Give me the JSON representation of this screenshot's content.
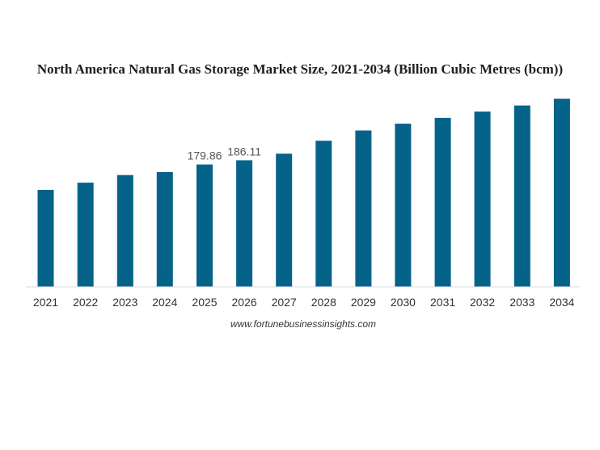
{
  "chart_data": {
    "type": "bar",
    "title": "North America Natural Gas Storage Market Size, 2021-2034 (Billion Cubic Metres (bcm))",
    "categories": [
      "2021",
      "2022",
      "2023",
      "2024",
      "2025",
      "2026",
      "2027",
      "2028",
      "2029",
      "2030",
      "2031",
      "2032",
      "2033",
      "2034"
    ],
    "values": [
      142.6,
      153.2,
      164.3,
      168.7,
      179.86,
      186.11,
      195.8,
      214.9,
      229.9,
      239.9,
      248.5,
      257.7,
      266.7,
      276.6
    ],
    "data_labels": [
      null,
      null,
      null,
      null,
      "179.86",
      "186.11",
      null,
      null,
      null,
      null,
      null,
      null,
      null,
      null
    ],
    "bar_color": "#05638a",
    "ylim": [
      0,
      300
    ],
    "grid": false,
    "xlabel": "",
    "ylabel": ""
  },
  "source": "www.fortunebusinessinsights.com"
}
